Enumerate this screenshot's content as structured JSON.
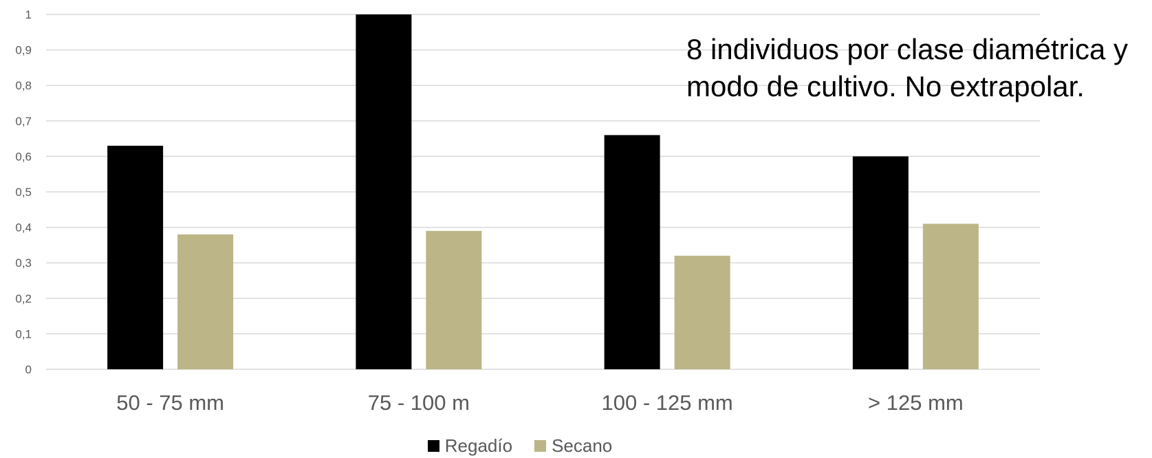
{
  "chart_data": {
    "type": "bar",
    "categories": [
      "50 - 75 mm",
      "75 - 100 m",
      "100 - 125 mm",
      "> 125 mm"
    ],
    "series": [
      {
        "name": "Regadío",
        "values": [
          0.63,
          1.0,
          0.66,
          0.6
        ],
        "color": "#000000"
      },
      {
        "name": "Secano",
        "values": [
          0.38,
          0.39,
          0.32,
          0.41
        ],
        "color": "#bcb587"
      }
    ],
    "y_ticks": [
      "0",
      "0,1",
      "0,2",
      "0,3",
      "0,4",
      "0,5",
      "0,6",
      "0,7",
      "0,8",
      "0,9",
      "1"
    ],
    "ylim": [
      0,
      1
    ],
    "grid": true,
    "legend": "bottom",
    "annotation": "8 individuos por clase diamétrica y modo de cultivo. No extrapolar."
  }
}
